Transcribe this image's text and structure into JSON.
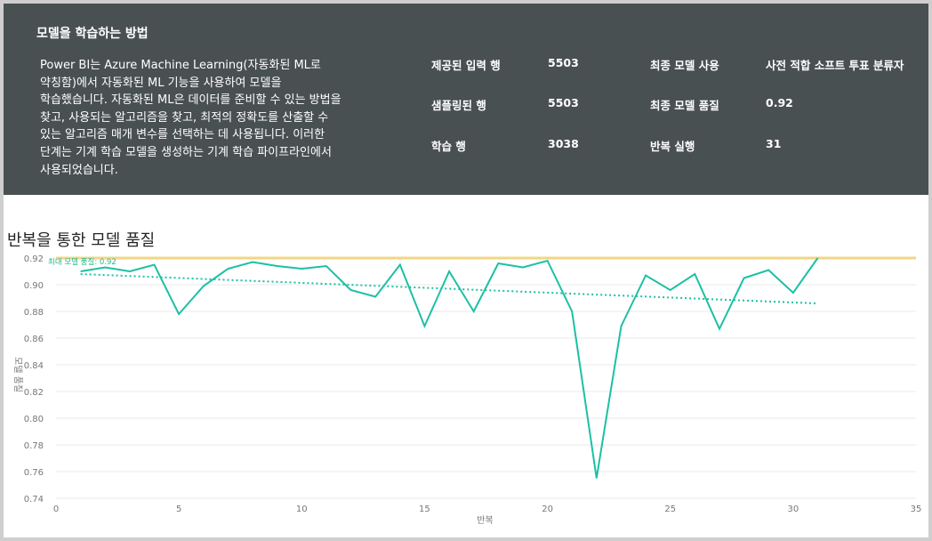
{
  "header": {
    "title": "모델을 학습하는 방법",
    "description": "Power BI는 Azure Machine Learning(자동화된 ML로\n약칭함)에서 자동화된 ML 기능을 사용하여 모델을\n학습했습니다. 자동화된 ML은 데이터를 준비할 수 있는 방법을\n찾고, 사용되는 알고리즘을 찾고, 최적의 정확도를 산출할 수\n있는 알고리즘 매개 변수를 선택하는 데 사용됩니다. 이러한\n단계는 기계 학습 모델을 생성하는 기계 학습 파이프라인에서\n사용되었습니다.",
    "stats_left": [
      {
        "label": "제공된 입력 행",
        "value": "5503"
      },
      {
        "label": "샘플링된 행",
        "value": "5503"
      },
      {
        "label": "학습 행",
        "value": "3038"
      }
    ],
    "stats_right": [
      {
        "label": "최종 모델 사용",
        "value": "사전 적합 소프트 투표 분류자"
      },
      {
        "label": "최종 모델 품질",
        "value": "0.92"
      },
      {
        "label": "반복 실행",
        "value": "31"
      }
    ]
  },
  "chart_title": "반복을 통한 모델 품질",
  "chart_data": {
    "type": "line",
    "xlabel": "반복",
    "ylabel": "모델 품질",
    "xlim": [
      0,
      35
    ],
    "ylim": [
      0.74,
      0.92
    ],
    "xticks": [
      0,
      5,
      10,
      15,
      20,
      25,
      30,
      35
    ],
    "yticks": [
      0.74,
      0.76,
      0.78,
      0.8,
      0.82,
      0.84,
      0.86,
      0.88,
      0.9,
      0.92
    ],
    "grid": true,
    "colors": {
      "series": "#1cc0a3",
      "trend": "#1cc0a3",
      "max_line": "#f2d586",
      "annotation": "#1fb98e"
    },
    "series": [
      {
        "x": [
          1,
          2,
          3,
          4,
          5,
          6,
          7,
          8,
          9,
          10,
          11,
          12,
          13,
          14,
          15,
          16,
          17,
          18,
          19,
          20,
          21,
          22,
          23,
          24,
          25,
          26,
          27,
          28,
          29,
          30,
          31
        ],
        "values": [
          0.91,
          0.913,
          0.91,
          0.915,
          0.878,
          0.899,
          0.912,
          0.917,
          0.914,
          0.912,
          0.914,
          0.896,
          0.891,
          0.915,
          0.869,
          0.91,
          0.88,
          0.916,
          0.913,
          0.918,
          0.88,
          0.755,
          0.869,
          0.907,
          0.896,
          0.908,
          0.867,
          0.905,
          0.911,
          0.894,
          0.92
        ]
      }
    ],
    "trend_line": {
      "x": [
        1,
        31
      ],
      "values": [
        0.908,
        0.886
      ]
    },
    "max_line": {
      "value": 0.92,
      "label": "최대 모델 품질: 0.92"
    }
  }
}
